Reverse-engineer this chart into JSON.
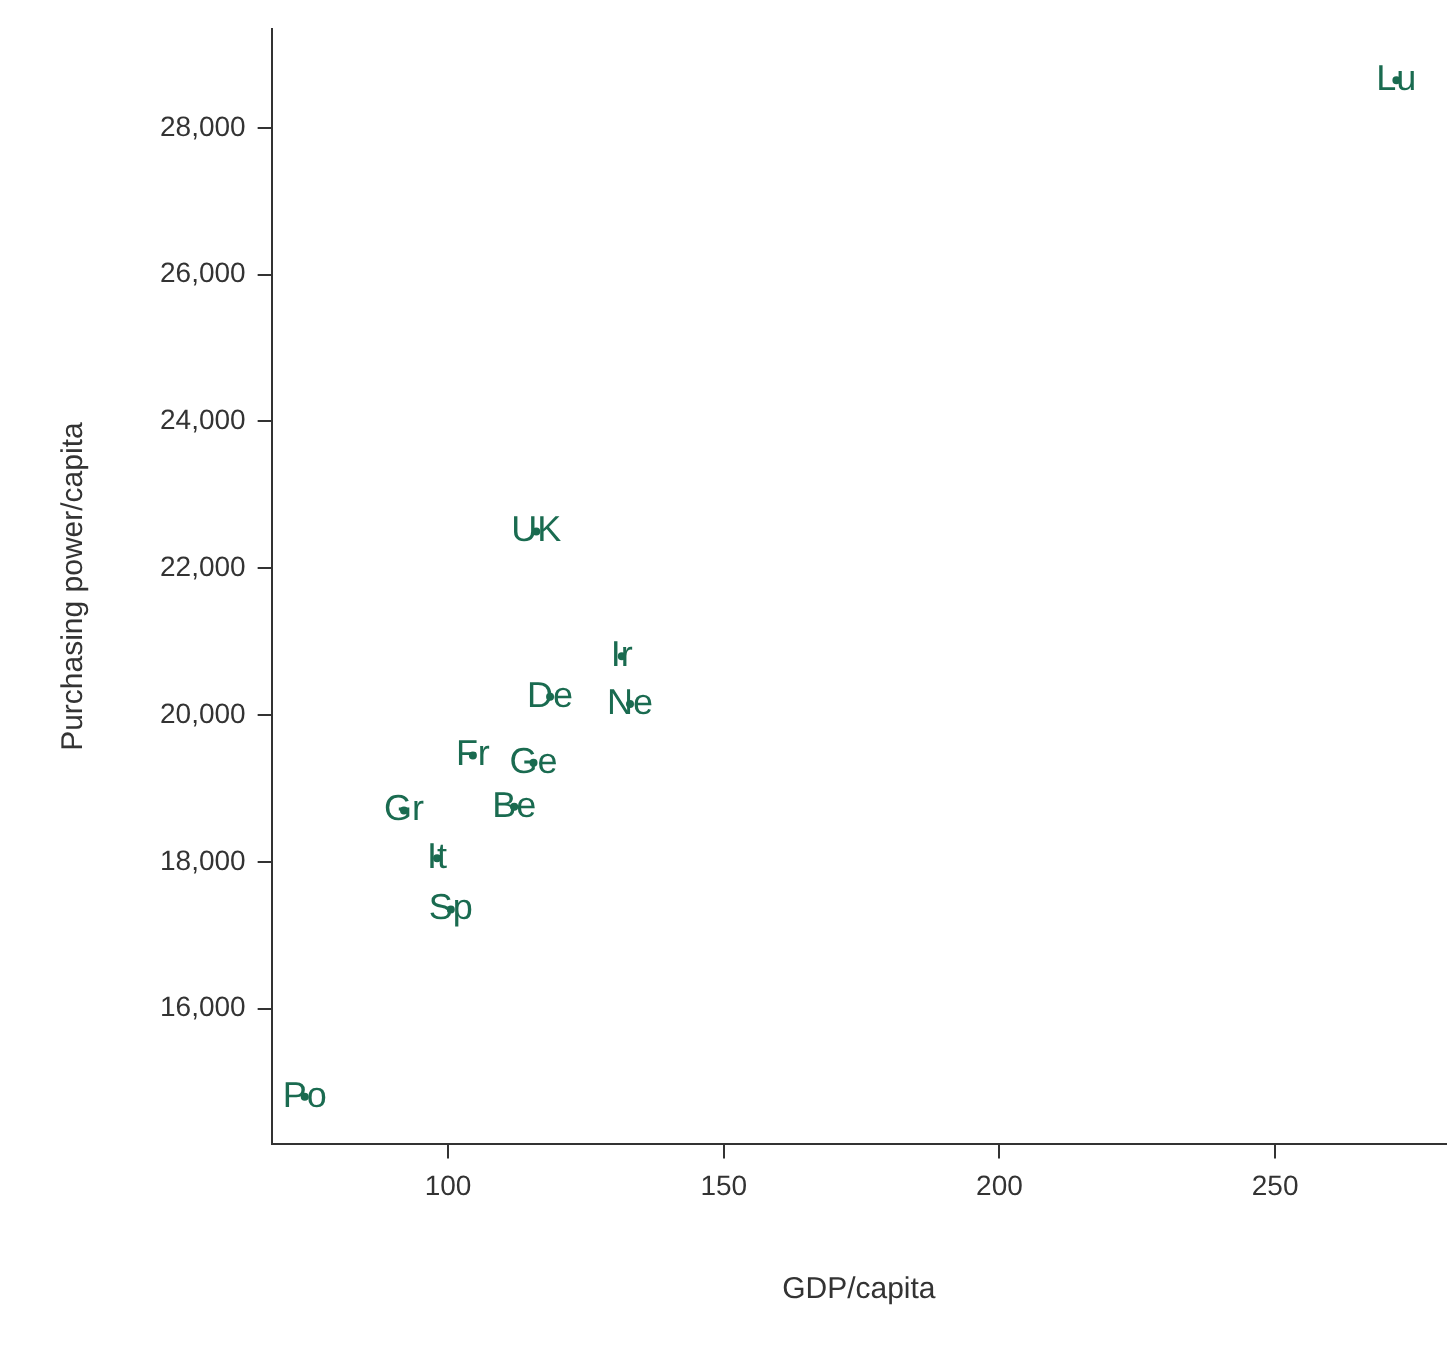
{
  "chart_data": {
    "type": "scatter",
    "xlabel": "GDP/capita",
    "ylabel": "Purchasing power/capita",
    "xlim": [
      68,
      281
    ],
    "xticks": [
      100,
      150,
      200,
      250
    ],
    "ylim": [
      14150,
      29350
    ],
    "yticks": [
      {
        "value": 16000,
        "label": "16,000"
      },
      {
        "value": 18000,
        "label": "18,000"
      },
      {
        "value": 20000,
        "label": "20,000"
      },
      {
        "value": 22000,
        "label": "22,000"
      },
      {
        "value": 24000,
        "label": "24,000"
      },
      {
        "value": 26000,
        "label": "26,000"
      },
      {
        "value": 28000,
        "label": "28,000"
      }
    ],
    "grid": false,
    "legend": false,
    "series": [
      {
        "color": "#1a6b50",
        "x": [
          272,
          74,
          116,
          131.5,
          133,
          118.5,
          104.5,
          115.5,
          92,
          112,
          98,
          100.5
        ],
        "values": [
          28650,
          14800,
          22500,
          20800,
          20150,
          20250,
          19450,
          19350,
          18700,
          18750,
          18050,
          17350
        ],
        "value_labels": [
          "Lu",
          "Po",
          "UK",
          "Ir",
          "Ne",
          "De",
          "Fr",
          "Ge",
          "Gr",
          "Be",
          "It",
          "Sp"
        ]
      }
    ]
  }
}
